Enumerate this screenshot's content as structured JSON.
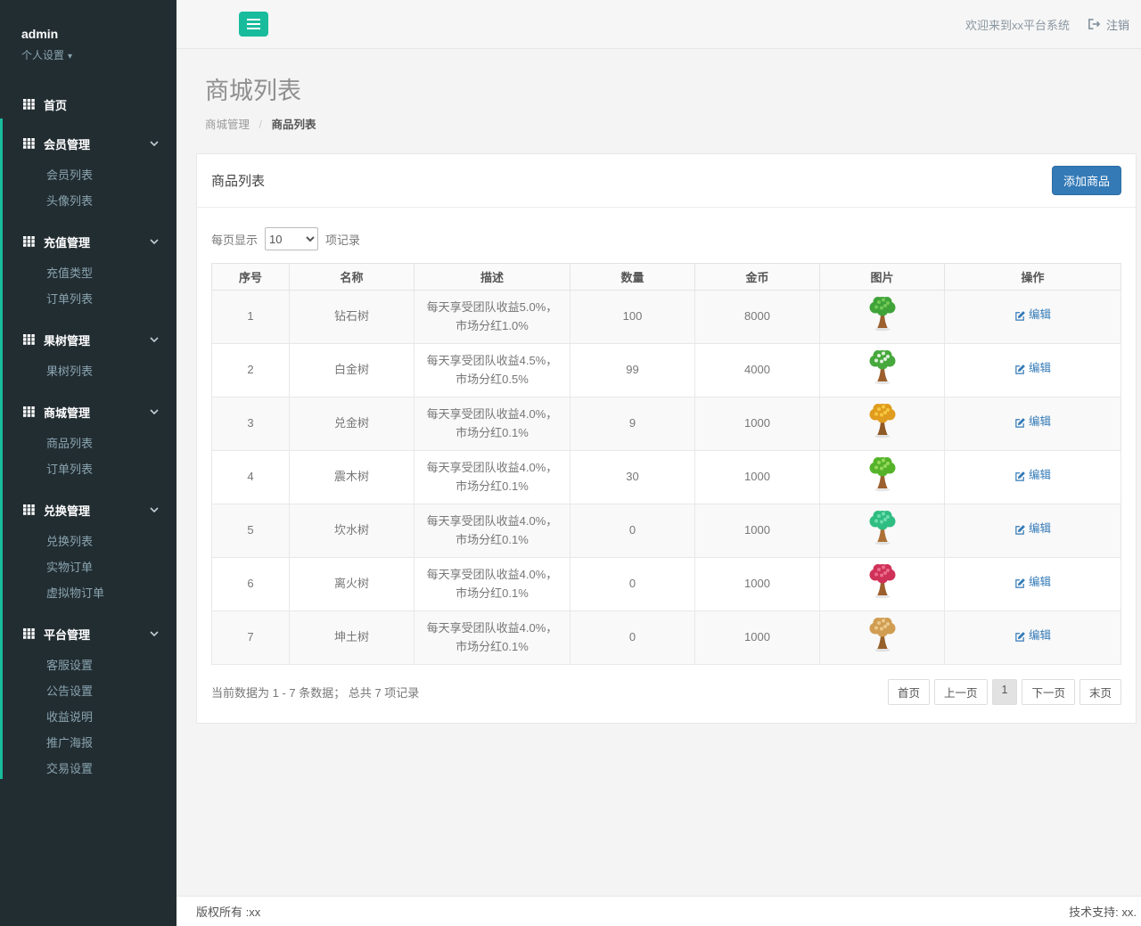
{
  "colors": {
    "accent_green": "#18bc9c",
    "primary_blue": "#337ab7",
    "sidebar_bg": "#222d32",
    "sidebar_subtext": "#8aa4af"
  },
  "sidebar": {
    "user": {
      "name": "admin",
      "settings_label": "个人设置",
      "caret_icon": "caret-down-icon"
    },
    "home": {
      "label": "首页",
      "icon": "grid-icon"
    },
    "sections": [
      {
        "label": "会员管理",
        "icon": "grid-icon",
        "chevron": "chevron-down-icon",
        "children": [
          "会员列表",
          "头像列表"
        ]
      },
      {
        "label": "充值管理",
        "icon": "grid-icon",
        "chevron": "chevron-down-icon",
        "children": [
          "充值类型",
          "订单列表"
        ]
      },
      {
        "label": "果树管理",
        "icon": "grid-icon",
        "chevron": "chevron-down-icon",
        "children": [
          "果树列表"
        ]
      },
      {
        "label": "商城管理",
        "icon": "grid-icon",
        "chevron": "chevron-down-icon",
        "children": [
          "商品列表",
          "订单列表"
        ]
      },
      {
        "label": "兑换管理",
        "icon": "grid-icon",
        "chevron": "chevron-down-icon",
        "children": [
          "兑换列表",
          "实物订单",
          "虚拟物订单"
        ]
      },
      {
        "label": "平台管理",
        "icon": "grid-icon",
        "chevron": "chevron-down-icon",
        "children": [
          "客服设置",
          "公告设置",
          "收益说明",
          "推广海报",
          "交易设置"
        ]
      }
    ]
  },
  "topbar": {
    "toggle_icon": "hamburger-icon",
    "welcome": "欢迎来到xx平台系统",
    "logout_icon": "sign-out-icon",
    "logout": "注销"
  },
  "page": {
    "title": "商城列表",
    "breadcrumb": [
      "商城管理",
      "商品列表"
    ],
    "separator": "/"
  },
  "panel": {
    "title": "商品列表",
    "add_button": "添加商品"
  },
  "table_controls": {
    "prefix": "每页显示",
    "page_size": "10",
    "suffix": "项记录"
  },
  "table": {
    "headers": [
      "序号",
      "名称",
      "描述",
      "数量",
      "金币",
      "图片",
      "操作"
    ],
    "edit_icon": "edit-pencil-square-icon",
    "edit_label": "编辑",
    "tree_icon": "pixel-tree-icon",
    "rows": [
      {
        "no": "1",
        "name": "钻石树",
        "desc": "每天享受团队收益5.0%，市场分红1.0%",
        "qty": "100",
        "coins": "8000",
        "tree_colors": {
          "canopy": "#3fa339",
          "light": "#72c957",
          "trunk": "#9c5f2e"
        }
      },
      {
        "no": "2",
        "name": "白金树",
        "desc": "每天享受团队收益4.5%，市场分红0.5%",
        "qty": "99",
        "coins": "4000",
        "tree_colors": {
          "canopy": "#47a83d",
          "light": "#dff0dc",
          "trunk": "#9c5f2e"
        }
      },
      {
        "no": "3",
        "name": "兑金树",
        "desc": "每天享受团队收益4.0%，市场分红0.1%",
        "qty": "9",
        "coins": "1000",
        "tree_colors": {
          "canopy": "#e09c1e",
          "light": "#f6c842",
          "trunk": "#8f5a26"
        }
      },
      {
        "no": "4",
        "name": "震木树",
        "desc": "每天享受团队收益4.0%，市场分红0.1%",
        "qty": "30",
        "coins": "1000",
        "tree_colors": {
          "canopy": "#55b32a",
          "light": "#95d95c",
          "trunk": "#9c5f2e"
        }
      },
      {
        "no": "5",
        "name": "坎水树",
        "desc": "每天享受团队收益4.0%，市场分红0.1%",
        "qty": "0",
        "coins": "1000",
        "tree_colors": {
          "canopy": "#2fbd82",
          "light": "#6fdcae",
          "trunk": "#ad7136"
        }
      },
      {
        "no": "6",
        "name": "离火树",
        "desc": "每天享受团队收益4.0%，市场分红0.1%",
        "qty": "0",
        "coins": "1000",
        "tree_colors": {
          "canopy": "#cf3158",
          "light": "#ea6e8d",
          "trunk": "#9c5f2e"
        }
      },
      {
        "no": "7",
        "name": "坤土树",
        "desc": "每天享受团队收益4.0%，市场分红0.1%",
        "qty": "0",
        "coins": "1000",
        "tree_colors": {
          "canopy": "#d09d52",
          "light": "#ecc88c",
          "trunk": "#96602a"
        }
      }
    ]
  },
  "pagination": {
    "summary": "当前数据为 1 - 7 条数据； 总共 7 项记录",
    "buttons": [
      "首页",
      "上一页",
      "1",
      "下一页",
      "末页"
    ],
    "active": "1"
  },
  "footer": {
    "left": "版权所有 :xx",
    "right": "技术支持: xx."
  }
}
